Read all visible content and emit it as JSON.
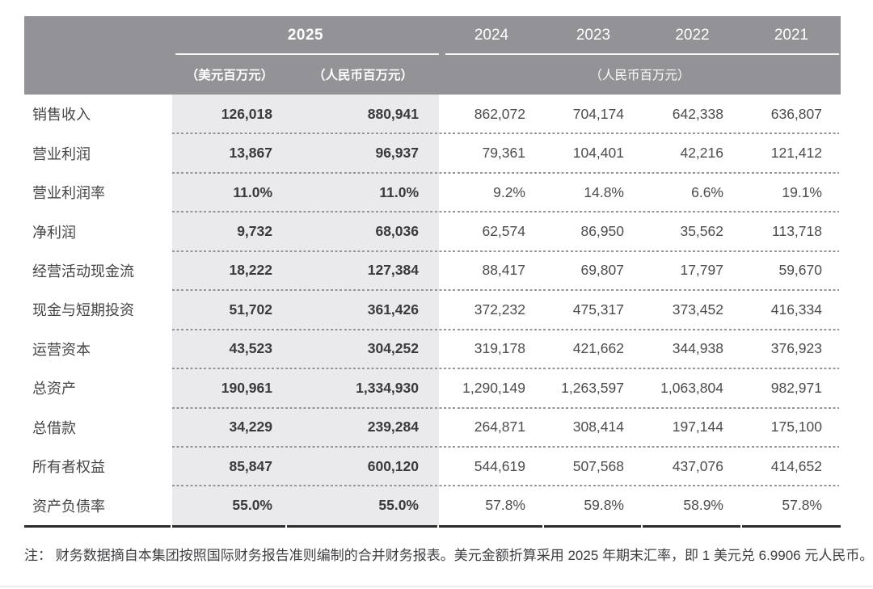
{
  "table": {
    "header": {
      "year_2025": "2025",
      "years": [
        "2024",
        "2023",
        "2022",
        "2021"
      ],
      "sub_usd": "（美元百万元）",
      "sub_rmb": "（人民币百万元）",
      "sub_rmb_right": "（人民币百万元）"
    },
    "rows": [
      {
        "label": "销售收入",
        "usd": "126,018",
        "rmb": "880,941",
        "y2024": "862,072",
        "y2023": "704,174",
        "y2022": "642,338",
        "y2021": "636,807"
      },
      {
        "label": "营业利润",
        "usd": "13,867",
        "rmb": "96,937",
        "y2024": "79,361",
        "y2023": "104,401",
        "y2022": "42,216",
        "y2021": "121,412"
      },
      {
        "label": "营业利润率",
        "usd": "11.0%",
        "rmb": "11.0%",
        "y2024": "9.2%",
        "y2023": "14.8%",
        "y2022": "6.6%",
        "y2021": "19.1%"
      },
      {
        "label": "净利润",
        "usd": "9,732",
        "rmb": "68,036",
        "y2024": "62,574",
        "y2023": "86,950",
        "y2022": "35,562",
        "y2021": "113,718"
      },
      {
        "label": "经营活动现金流",
        "usd": "18,222",
        "rmb": "127,384",
        "y2024": "88,417",
        "y2023": "69,807",
        "y2022": "17,797",
        "y2021": "59,670"
      },
      {
        "label": "现金与短期投资",
        "usd": "51,702",
        "rmb": "361,426",
        "y2024": "372,232",
        "y2023": "475,317",
        "y2022": "373,452",
        "y2021": "416,334"
      },
      {
        "label": "运营资本",
        "usd": "43,523",
        "rmb": "304,252",
        "y2024": "319,178",
        "y2023": "421,662",
        "y2022": "344,938",
        "y2021": "376,923"
      },
      {
        "label": "总资产",
        "usd": "190,961",
        "rmb": "1,334,930",
        "y2024": "1,290,149",
        "y2023": "1,263,597",
        "y2022": "1,063,804",
        "y2021": "982,971"
      },
      {
        "label": "总借款",
        "usd": "34,229",
        "rmb": "239,284",
        "y2024": "264,871",
        "y2023": "308,414",
        "y2022": "197,144",
        "y2021": "175,100"
      },
      {
        "label": "所有者权益",
        "usd": "85,847",
        "rmb": "600,120",
        "y2024": "544,619",
        "y2023": "507,568",
        "y2022": "437,076",
        "y2021": "414,652"
      },
      {
        "label": "资产负债率",
        "usd": "55.0%",
        "rmb": "55.0%",
        "y2024": "57.8%",
        "y2023": "59.8%",
        "y2022": "58.9%",
        "y2021": "57.8%"
      }
    ]
  },
  "note": {
    "prefix": "注：",
    "text": "财务数据摘自本集团按照国际财务报告准则编制的合并财务报表。美元金额折算采用 2025 年期末汇率，即 1 美元兑 6.9906 元人民币。"
  },
  "colors": {
    "header_bg": "#929297",
    "band_bg": "#eaeaec",
    "bottom_border": "#2b2b2d"
  }
}
